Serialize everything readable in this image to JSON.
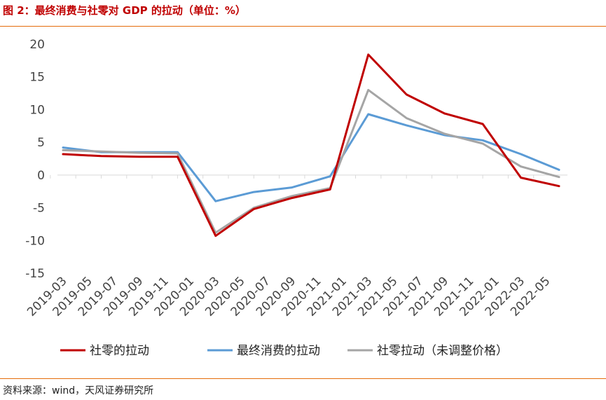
{
  "title": "图 2：最终消费与社零对 GDP 的拉动（单位：%）",
  "source": "资料来源：wind，天风证券研究所",
  "chart_data": {
    "type": "line",
    "title": "图 2：最终消费与社零对 GDP 的拉动（单位：%）",
    "xlabel": "",
    "ylabel": "",
    "ylim": [
      -15,
      20
    ],
    "yticks": [
      20,
      15,
      10,
      5,
      0,
      -5,
      -10,
      -15
    ],
    "grid": false,
    "legend_position": "bottom",
    "x_tick_labels": [
      "2019-03",
      "2019-05",
      "2019-07",
      "2019-09",
      "2019-11",
      "2020-01",
      "2020-03",
      "2020-05",
      "2020-07",
      "2020-09",
      "2020-11",
      "2021-01",
      "2021-03",
      "2021-05",
      "2021-07",
      "2021-09",
      "2021-11",
      "2022-01",
      "2022-03",
      "2022-05"
    ],
    "x": [
      "2019-03",
      "2019-06",
      "2019-09",
      "2019-12",
      "2020-03",
      "2020-06",
      "2020-09",
      "2020-12",
      "2021-03",
      "2021-06",
      "2021-09",
      "2021-12",
      "2022-03",
      "2022-06"
    ],
    "series": [
      {
        "name": "社零的拉动",
        "color": "#C00000",
        "values": [
          3.2,
          2.9,
          2.8,
          2.8,
          -9.3,
          -5.2,
          -3.5,
          -2.2,
          18.4,
          12.3,
          9.4,
          7.8,
          -0.4,
          -1.7
        ]
      },
      {
        "name": "最终消费的拉动",
        "color": "#5B9BD5",
        "values": [
          4.2,
          3.5,
          3.5,
          3.5,
          -4.0,
          -2.6,
          -1.9,
          -0.2,
          9.3,
          7.6,
          6.1,
          5.3,
          3.2,
          0.8
        ]
      },
      {
        "name": "社零拉动（未调整价格）",
        "color": "#A5A5A5",
        "values": [
          3.8,
          3.6,
          3.4,
          3.3,
          -8.8,
          -5.0,
          -3.2,
          -2.0,
          13.0,
          8.7,
          6.3,
          4.8,
          1.3,
          -0.3
        ]
      }
    ]
  }
}
